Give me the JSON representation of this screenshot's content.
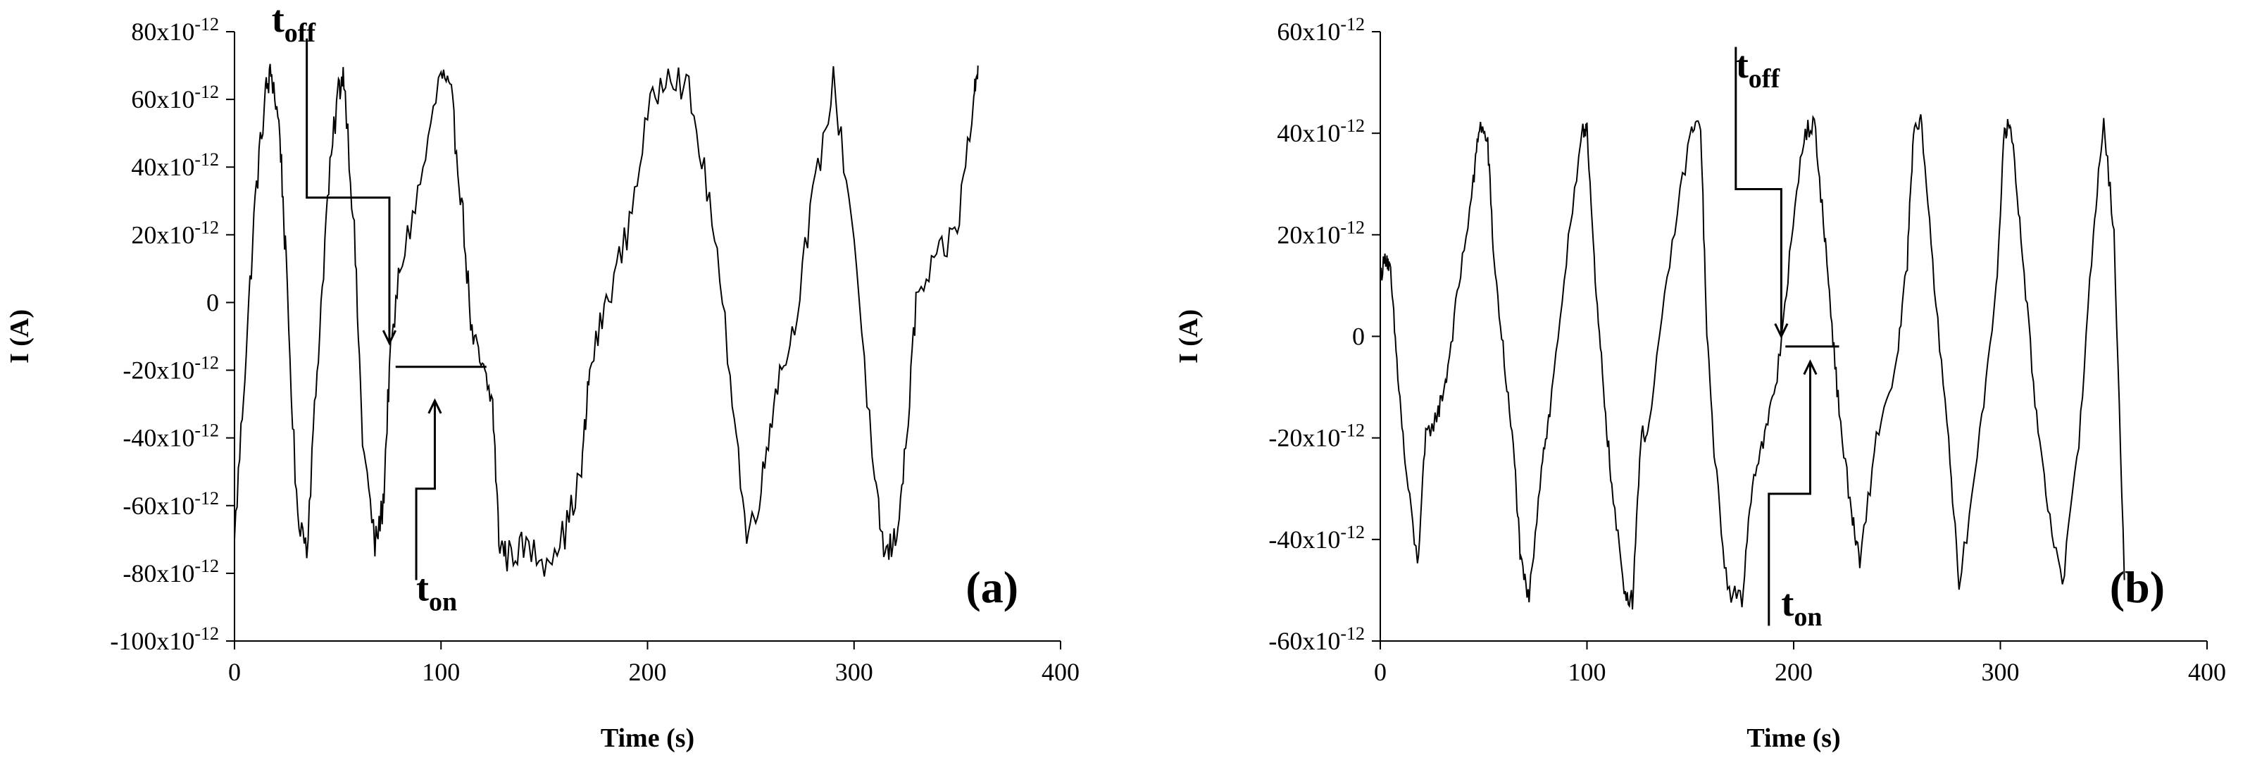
{
  "chart_data": [
    {
      "type": "line",
      "panel_label": "(a)",
      "title": "",
      "xlabel": "Time (s)",
      "ylabel": "I (A)",
      "xlim": [
        0,
        400
      ],
      "ylim": [
        -1e-10,
        8e-11
      ],
      "xticks": [
        0,
        100,
        200,
        300,
        400
      ],
      "xtick_labels": [
        "0",
        "100",
        "200",
        "300",
        "400"
      ],
      "yticks": [
        -1e-10,
        -8e-11,
        -6e-11,
        -4e-11,
        -2e-11,
        0,
        2e-11,
        4e-11,
        6e-11,
        8e-11
      ],
      "ytick_labels": [
        {
          "mantissa": "-100x10",
          "exp": "-12"
        },
        {
          "mantissa": "-80x10",
          "exp": "-12"
        },
        {
          "mantissa": "-60x10",
          "exp": "-12"
        },
        {
          "mantissa": "-40x10",
          "exp": "-12"
        },
        {
          "mantissa": "-20x10",
          "exp": "-12"
        },
        {
          "mantissa": "0",
          "exp": ""
        },
        {
          "mantissa": "20x10",
          "exp": "-12"
        },
        {
          "mantissa": "40x10",
          "exp": "-12"
        },
        {
          "mantissa": "60x10",
          "exp": "-12"
        },
        {
          "mantissa": "80x10",
          "exp": "-12"
        }
      ],
      "grid": false,
      "legend": "none",
      "noise": 5e-12,
      "series": [
        {
          "x": [
            0,
            5,
            10,
            15,
            18,
            22,
            25,
            30,
            35,
            40,
            45,
            50,
            53,
            58,
            62,
            68,
            72,
            75,
            80,
            90,
            100,
            105,
            110,
            115,
            120,
            125,
            128,
            132,
            140,
            150,
            160,
            168,
            172,
            180,
            190,
            200,
            210,
            220,
            230,
            240,
            248,
            255,
            262,
            270,
            280,
            290,
            300,
            310,
            315,
            320,
            325,
            330,
            340,
            350,
            358,
            360
          ],
          "y": [
            -7e-11,
            -2e-11,
            3e-11,
            6.2e-11,
            6.8e-11,
            5e-11,
            1e-11,
            -6e-11,
            -7.2e-11,
            -2e-11,
            3e-11,
            6.2e-11,
            6.8e-11,
            2e-11,
            -4e-11,
            -7.2e-11,
            -6e-11,
            -2e-11,
            1e-11,
            3.5e-11,
            6.8e-11,
            6e-11,
            3e-11,
            -1e-11,
            -2e-11,
            -3e-11,
            -7e-11,
            -7.5e-11,
            -7.2e-11,
            -7.6e-11,
            -6.8e-11,
            -5e-11,
            -2e-11,
            0,
            2e-11,
            5.5e-11,
            7e-11,
            6.2e-11,
            3e-11,
            -2e-11,
            -7e-11,
            -5.5e-11,
            -2.5e-11,
            -1e-11,
            3e-11,
            6.5e-11,
            2e-11,
            -5.5e-11,
            -7.5e-11,
            -7e-11,
            -4.5e-11,
            0,
            1.2e-11,
            2.2e-11,
            6e-11,
            7e-11
          ]
        }
      ],
      "annotations": [
        {
          "main": "t",
          "sub": "off",
          "x": 18,
          "y": 8e-11,
          "arrow_path": [
            [
              35,
              7.8e-11
            ],
            [
              35,
              3.1e-11
            ],
            [
              75,
              3.1e-11
            ],
            [
              75,
              -1.2e-11
            ]
          ]
        },
        {
          "main": "t",
          "sub": "on",
          "x": 88,
          "y": -8.8e-11,
          "arrow_path": [
            [
              88,
              -8.2e-11
            ],
            [
              88,
              -5.5e-11
            ],
            [
              97,
              -5.5e-11
            ],
            [
              97,
              -2.9e-11
            ]
          ]
        }
      ],
      "segments": [
        {
          "x1": 78,
          "y1": -1.9e-11,
          "x2": 122,
          "y2": -1.9e-11
        }
      ]
    },
    {
      "type": "line",
      "panel_label": "(b)",
      "title": "",
      "xlabel": "Time (s)",
      "ylabel": "I (A)",
      "xlim": [
        0,
        400
      ],
      "ylim": [
        -6e-11,
        6e-11
      ],
      "xticks": [
        0,
        100,
        200,
        300,
        400
      ],
      "xtick_labels": [
        "0",
        "100",
        "200",
        "300",
        "400"
      ],
      "yticks": [
        -6e-11,
        -4e-11,
        -2e-11,
        0,
        2e-11,
        4e-11,
        6e-11
      ],
      "ytick_labels": [
        {
          "mantissa": "-60x10",
          "exp": "-12"
        },
        {
          "mantissa": "-40x10",
          "exp": "-12"
        },
        {
          "mantissa": "-20x10",
          "exp": "-12"
        },
        {
          "mantissa": "0",
          "exp": ""
        },
        {
          "mantissa": "20x10",
          "exp": "-12"
        },
        {
          "mantissa": "40x10",
          "exp": "-12"
        },
        {
          "mantissa": "60x10",
          "exp": "-12"
        }
      ],
      "grid": false,
      "legend": "none",
      "noise": 2e-12,
      "series": [
        {
          "x": [
            0,
            3,
            5,
            8,
            12,
            18,
            22,
            28,
            32,
            38,
            45,
            48,
            52,
            55,
            60,
            65,
            68,
            72,
            78,
            82,
            90,
            98,
            100,
            104,
            108,
            112,
            118,
            122,
            126,
            130,
            140,
            150,
            155,
            158,
            162,
            168,
            175,
            180,
            186,
            192,
            198,
            205,
            210,
            215,
            218,
            222,
            228,
            232,
            240,
            250,
            255,
            258,
            262,
            268,
            275,
            280,
            290,
            298,
            302,
            305,
            310,
            316,
            322,
            330,
            338,
            345,
            350,
            355,
            360
          ],
          "y": [
            1.2e-11,
            1.6e-11,
            1.2e-11,
            -5e-12,
            -2.5e-11,
            -4.5e-11,
            -2e-11,
            -1.5e-11,
            -8e-12,
            1e-11,
            3e-11,
            4.2e-11,
            3.8e-11,
            1.5e-11,
            -5e-12,
            -2.5e-11,
            -4.5e-11,
            -5.2e-11,
            -2.5e-11,
            -1.5e-11,
            1.5e-11,
            4e-11,
            4.2e-11,
            1e-11,
            -1e-11,
            -3e-11,
            -5e-11,
            -5.2e-11,
            -2e-11,
            -1.8e-11,
            1.5e-11,
            4e-11,
            4.2e-11,
            0,
            -2.5e-11,
            -5e-11,
            -5.2e-11,
            -2.8e-11,
            -2e-11,
            -8e-12,
            1.5e-11,
            4e-11,
            4.2e-11,
            2e-11,
            5e-12,
            -1.5e-11,
            -3.5e-11,
            -4.5e-11,
            -2e-11,
            -5e-12,
            1.5e-11,
            4e-11,
            4.2e-11,
            1e-11,
            -2e-11,
            -5e-11,
            -2e-11,
            1e-11,
            4e-11,
            4.2e-11,
            2e-11,
            -1e-11,
            -3e-11,
            -5e-11,
            -2e-11,
            2e-11,
            4.3e-11,
            2e-11,
            -4.8e-11
          ]
        }
      ],
      "annotations": [
        {
          "main": "t",
          "sub": "off",
          "x": 172,
          "y": 5.1e-11,
          "arrow_path": [
            [
              172,
              5.7e-11
            ],
            [
              172,
              2.9e-11
            ],
            [
              194,
              2.9e-11
            ],
            [
              194,
              0
            ]
          ]
        },
        {
          "main": "t",
          "sub": "on",
          "x": 194,
          "y": -5.5e-11,
          "arrow_path": [
            [
              188,
              -5.7e-11
            ],
            [
              188,
              -3.1e-11
            ],
            [
              208,
              -3.1e-11
            ],
            [
              208,
              -5e-12
            ]
          ]
        }
      ],
      "segments": [
        {
          "x1": 196,
          "y1": -2e-12,
          "x2": 222,
          "y2": -2e-12
        }
      ]
    }
  ]
}
